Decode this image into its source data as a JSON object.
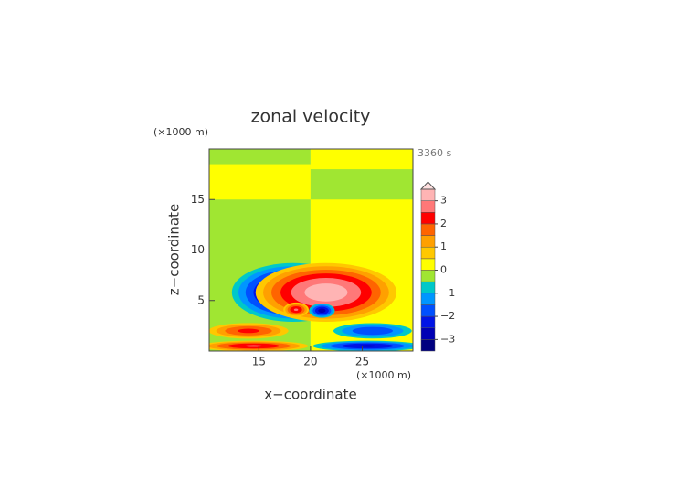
{
  "chart_data": {
    "type": "contour",
    "title": "zonal velocity",
    "x_label": "x−coordinate",
    "y_label": "z−coordinate",
    "x_unit_label": "(×1000 m)",
    "y_unit_label": "(×1000 m)",
    "time_label": "3360 s",
    "xlim": [
      10.2,
      29.9
    ],
    "xticks": [
      15,
      20,
      25
    ],
    "ylim": [
      0,
      20
    ],
    "yticks": [
      5,
      10,
      15
    ],
    "levels": [
      -3.5,
      -3,
      -2.5,
      -2,
      -1.5,
      -1,
      -0.5,
      0,
      0.5,
      1,
      1.5,
      2,
      2.5,
      3,
      3.5
    ],
    "colors": [
      "#000080",
      "#0000b4",
      "#0014e6",
      "#0050ff",
      "#0096ff",
      "#00c8c8",
      "#a0e632",
      "#ffff00",
      "#ffc800",
      "#ffa000",
      "#ff6400",
      "#ff0000",
      "#ff7878",
      "#ffb4b4"
    ],
    "extend_color": "#ffe0e0",
    "colorbar_ticks": [
      {
        "value": -3,
        "label": "−3"
      },
      {
        "value": -2,
        "label": "−2"
      },
      {
        "value": -1,
        "label": "−1"
      },
      0,
      1,
      2,
      3
    ],
    "regions": [
      {
        "value": -0.3,
        "x0": 10.2,
        "x1": 20,
        "z0": 0,
        "z1": 20
      },
      {
        "value": 0.3,
        "x0": 20,
        "x1": 29.9,
        "z0": 0,
        "z1": 20
      },
      {
        "value": 0.3,
        "x0": 10.2,
        "x1": 20,
        "z0": 15,
        "z1": 18.5
      },
      {
        "value": -0.3,
        "x0": 20,
        "x1": 29.9,
        "z0": 15,
        "z1": 18
      }
    ],
    "features": [
      {
        "value": -3.4,
        "x": 18.3,
        "z": 5.8,
        "rx": 6.5,
        "rz": 3.2
      },
      {
        "value": 3.4,
        "x": 21.5,
        "z": 5.8,
        "rx": 7.5,
        "rz": 3.2
      },
      {
        "value": 2.6,
        "x": 18.6,
        "z": 4.1,
        "rx": 1.4,
        "rz": 0.8
      },
      {
        "value": -2.8,
        "x": 21.1,
        "z": 4.0,
        "rx": 1.4,
        "rz": 0.8
      },
      {
        "value": 2.2,
        "x": 14.0,
        "z": 2.0,
        "rx": 4.5,
        "rz": 0.9
      },
      {
        "value": -2.0,
        "x": 26.0,
        "z": 2.0,
        "rx": 4.5,
        "rz": 0.9
      },
      {
        "value": 2.6,
        "x": 14.5,
        "z": 0.5,
        "rx": 6.0,
        "rz": 0.6
      },
      {
        "value": -2.6,
        "x": 25.5,
        "z": 0.5,
        "rx": 6.0,
        "rz": 0.6
      }
    ]
  }
}
